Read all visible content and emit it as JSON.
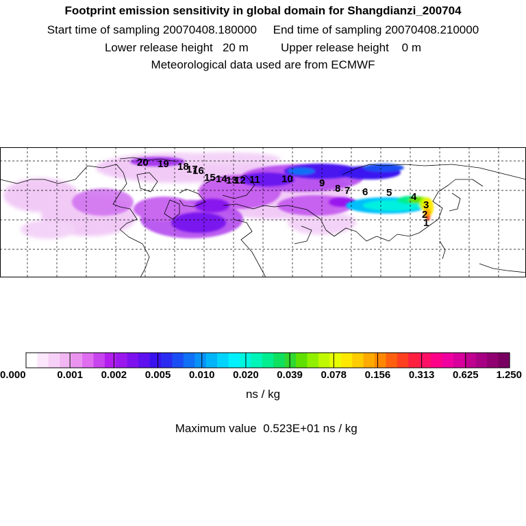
{
  "header": {
    "title": "Footprint emission sensitivity in global domain for Shangdianzi_200704",
    "line1": "Start time of sampling 20070408.180000     End time of sampling 20070408.210000",
    "line2": "Lower release height   20 m          Upper release height    0 m",
    "line3": "Meteorological data used are from ECMWF"
  },
  "colorbar": {
    "tick_labels": [
      "0.000",
      "0.001",
      "0.002",
      "0.005",
      "0.010",
      "0.020",
      "0.039",
      "0.078",
      "0.156",
      "0.313",
      "0.625",
      "1.250"
    ],
    "colors": [
      "#ffffff",
      "#fbe6fb",
      "#f7d0f7",
      "#f2b6f2",
      "#ea94f0",
      "#de6df0",
      "#c844ee",
      "#b31eef",
      "#9a18ee",
      "#7d12ee",
      "#5e10ee",
      "#3a12f0",
      "#2a2cf2",
      "#1a4ef4",
      "#1070f6",
      "#0892f8",
      "#00b4fa",
      "#00d4fc",
      "#00f0ff",
      "#00f5e0",
      "#00f5b8",
      "#00ee90",
      "#10e060",
      "#30d830",
      "#60e000",
      "#90f000",
      "#c0f800",
      "#e8ff00",
      "#ffe800",
      "#ffcc00",
      "#ffaa00",
      "#ff8800",
      "#ff6010",
      "#ff4020",
      "#ff2040",
      "#ff1066",
      "#ff0088",
      "#f000a0",
      "#d8009c",
      "#c00090",
      "#a80084",
      "#900070",
      "#780060"
    ],
    "unit": "ns / kg"
  },
  "max_value": {
    "label": "Maximum value",
    "value": "0.523E+01",
    "unit": "ns / kg"
  },
  "map": {
    "trajectory_labels": [
      "1",
      "2",
      "3",
      "4",
      "5",
      "6",
      "7",
      "8",
      "9",
      "10",
      "11",
      "12",
      "13",
      "14",
      "15",
      "16",
      "17",
      "18",
      "19",
      "20"
    ]
  }
}
